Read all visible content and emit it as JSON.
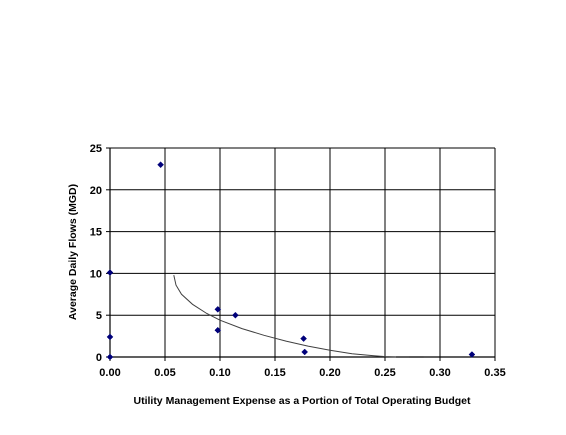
{
  "chart_data": {
    "type": "scatter",
    "title": "",
    "xlabel": "Utility Management Expense as a Portion of Total Operating Budget",
    "ylabel": "Average Daily Flows (MGD)",
    "xlim": [
      0,
      0.35
    ],
    "ylim": [
      0,
      25
    ],
    "x_ticks": [
      0,
      0.05,
      0.1,
      0.15,
      0.2,
      0.25,
      0.3,
      0.35
    ],
    "x_tick_labels": [
      "0.00",
      "0.05",
      "0.10",
      "0.15",
      "0.20",
      "0.25",
      "0.30",
      "0.35"
    ],
    "y_ticks": [
      0,
      5,
      10,
      15,
      20,
      25
    ],
    "y_tick_labels": [
      "0",
      "5",
      "10",
      "15",
      "20",
      "25"
    ],
    "grid": true,
    "legend": false,
    "marker_color": "#00007a",
    "trend_color": "#404040",
    "series": [
      {
        "values": [
          {
            "x": 0.0,
            "y": 10.1
          },
          {
            "x": 0.0,
            "y": 2.4
          },
          {
            "x": 0.0,
            "y": 0.0
          },
          {
            "x": 0.046,
            "y": 23.0
          },
          {
            "x": 0.098,
            "y": 5.7
          },
          {
            "x": 0.098,
            "y": 3.2
          },
          {
            "x": 0.114,
            "y": 5.0
          },
          {
            "x": 0.176,
            "y": 2.2
          },
          {
            "x": 0.177,
            "y": 0.6
          },
          {
            "x": 0.329,
            "y": 0.3
          }
        ]
      }
    ],
    "trendline": {
      "values": [
        {
          "x": 0.058,
          "y": 9.8
        },
        {
          "x": 0.06,
          "y": 8.6
        },
        {
          "x": 0.065,
          "y": 7.5
        },
        {
          "x": 0.075,
          "y": 6.3
        },
        {
          "x": 0.088,
          "y": 5.2
        },
        {
          "x": 0.1,
          "y": 4.4
        },
        {
          "x": 0.12,
          "y": 3.4
        },
        {
          "x": 0.14,
          "y": 2.6
        },
        {
          "x": 0.16,
          "y": 1.9
        },
        {
          "x": 0.18,
          "y": 1.3
        },
        {
          "x": 0.2,
          "y": 0.8
        },
        {
          "x": 0.22,
          "y": 0.4
        },
        {
          "x": 0.24,
          "y": 0.15
        },
        {
          "x": 0.25,
          "y": 0.05
        },
        {
          "x": 0.26,
          "y": 0.0
        }
      ],
      "tail": [
        {
          "x": 0.272,
          "y": 0.0
        },
        {
          "x": 0.285,
          "y": 0.0
        }
      ]
    }
  }
}
